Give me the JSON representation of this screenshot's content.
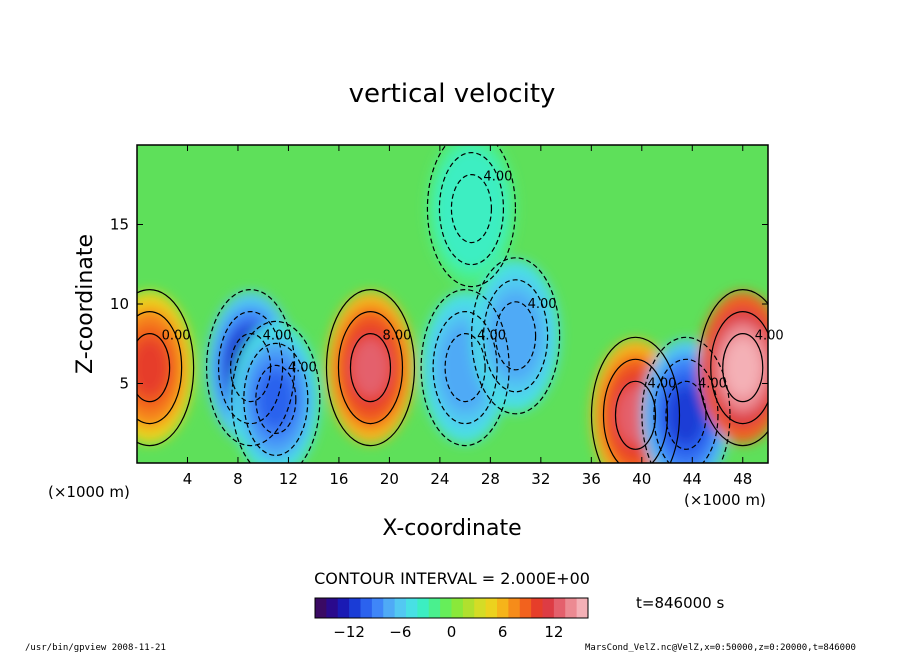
{
  "chart_data": {
    "type": "heatmap",
    "title": "vertical velocity",
    "xlabel": "X-coordinate",
    "ylabel": "Z-coordinate",
    "x_unit_label": "(×1000 m)",
    "y_unit_label": "(×1000 m)",
    "xlim": [
      0,
      50
    ],
    "ylim": [
      0,
      20
    ],
    "x_ticks": [
      4,
      8,
      12,
      16,
      20,
      24,
      28,
      32,
      36,
      40,
      44,
      48
    ],
    "y_ticks": [
      5,
      10,
      15
    ],
    "contour_interval_label": "CONTOUR INTERVAL = 2.000E+00",
    "time_label": "t=846000 s",
    "colorbar": {
      "range": [
        -16,
        16
      ],
      "ticks": [
        -12,
        -6,
        0,
        6,
        12
      ],
      "colors": [
        "#3a0a63",
        "#2a0a8c",
        "#1a1ab4",
        "#1a3cd6",
        "#2b62ee",
        "#3f86f8",
        "#4faaf6",
        "#53c8f2",
        "#48e0e4",
        "#3ceec2",
        "#4af08e",
        "#66ee5a",
        "#8ae83a",
        "#b0e02e",
        "#d4dc26",
        "#ecd21e",
        "#f6b41a",
        "#f68c1a",
        "#f2621e",
        "#e63e2a",
        "#dd3c44",
        "#e4606c",
        "#ec8a92",
        "#f4b0b6"
      ],
      "label_values": [
        -12,
        -6,
        0,
        6,
        12
      ]
    },
    "cells": [
      {
        "x": 1,
        "z": 6,
        "value": 10
      },
      {
        "x": 9,
        "z": 6,
        "value": -13
      },
      {
        "x": 11,
        "z": 4,
        "value": -10
      },
      {
        "x": 18.5,
        "z": 6,
        "value": 12
      },
      {
        "x": 26,
        "z": 6,
        "value": -8
      },
      {
        "x": 30,
        "z": 8,
        "value": -8
      },
      {
        "x": 26.5,
        "z": 16,
        "value": -4
      },
      {
        "x": 39.5,
        "z": 3,
        "value": 12
      },
      {
        "x": 43.5,
        "z": 3,
        "value": -12
      },
      {
        "x": 48,
        "z": 6,
        "value": 16
      }
    ],
    "contour_labels": [
      "0.00",
      "4.00",
      "4.00",
      "8.00",
      "4.00",
      "4.00",
      "4.00",
      "4.00",
      "4.00",
      "4.00"
    ]
  },
  "footer": {
    "left": "/usr/bin/gpview   2008-11-21",
    "right": "MarsCond_VelZ.nc@VelZ,x=0:50000,z=0:20000,t=846000"
  }
}
